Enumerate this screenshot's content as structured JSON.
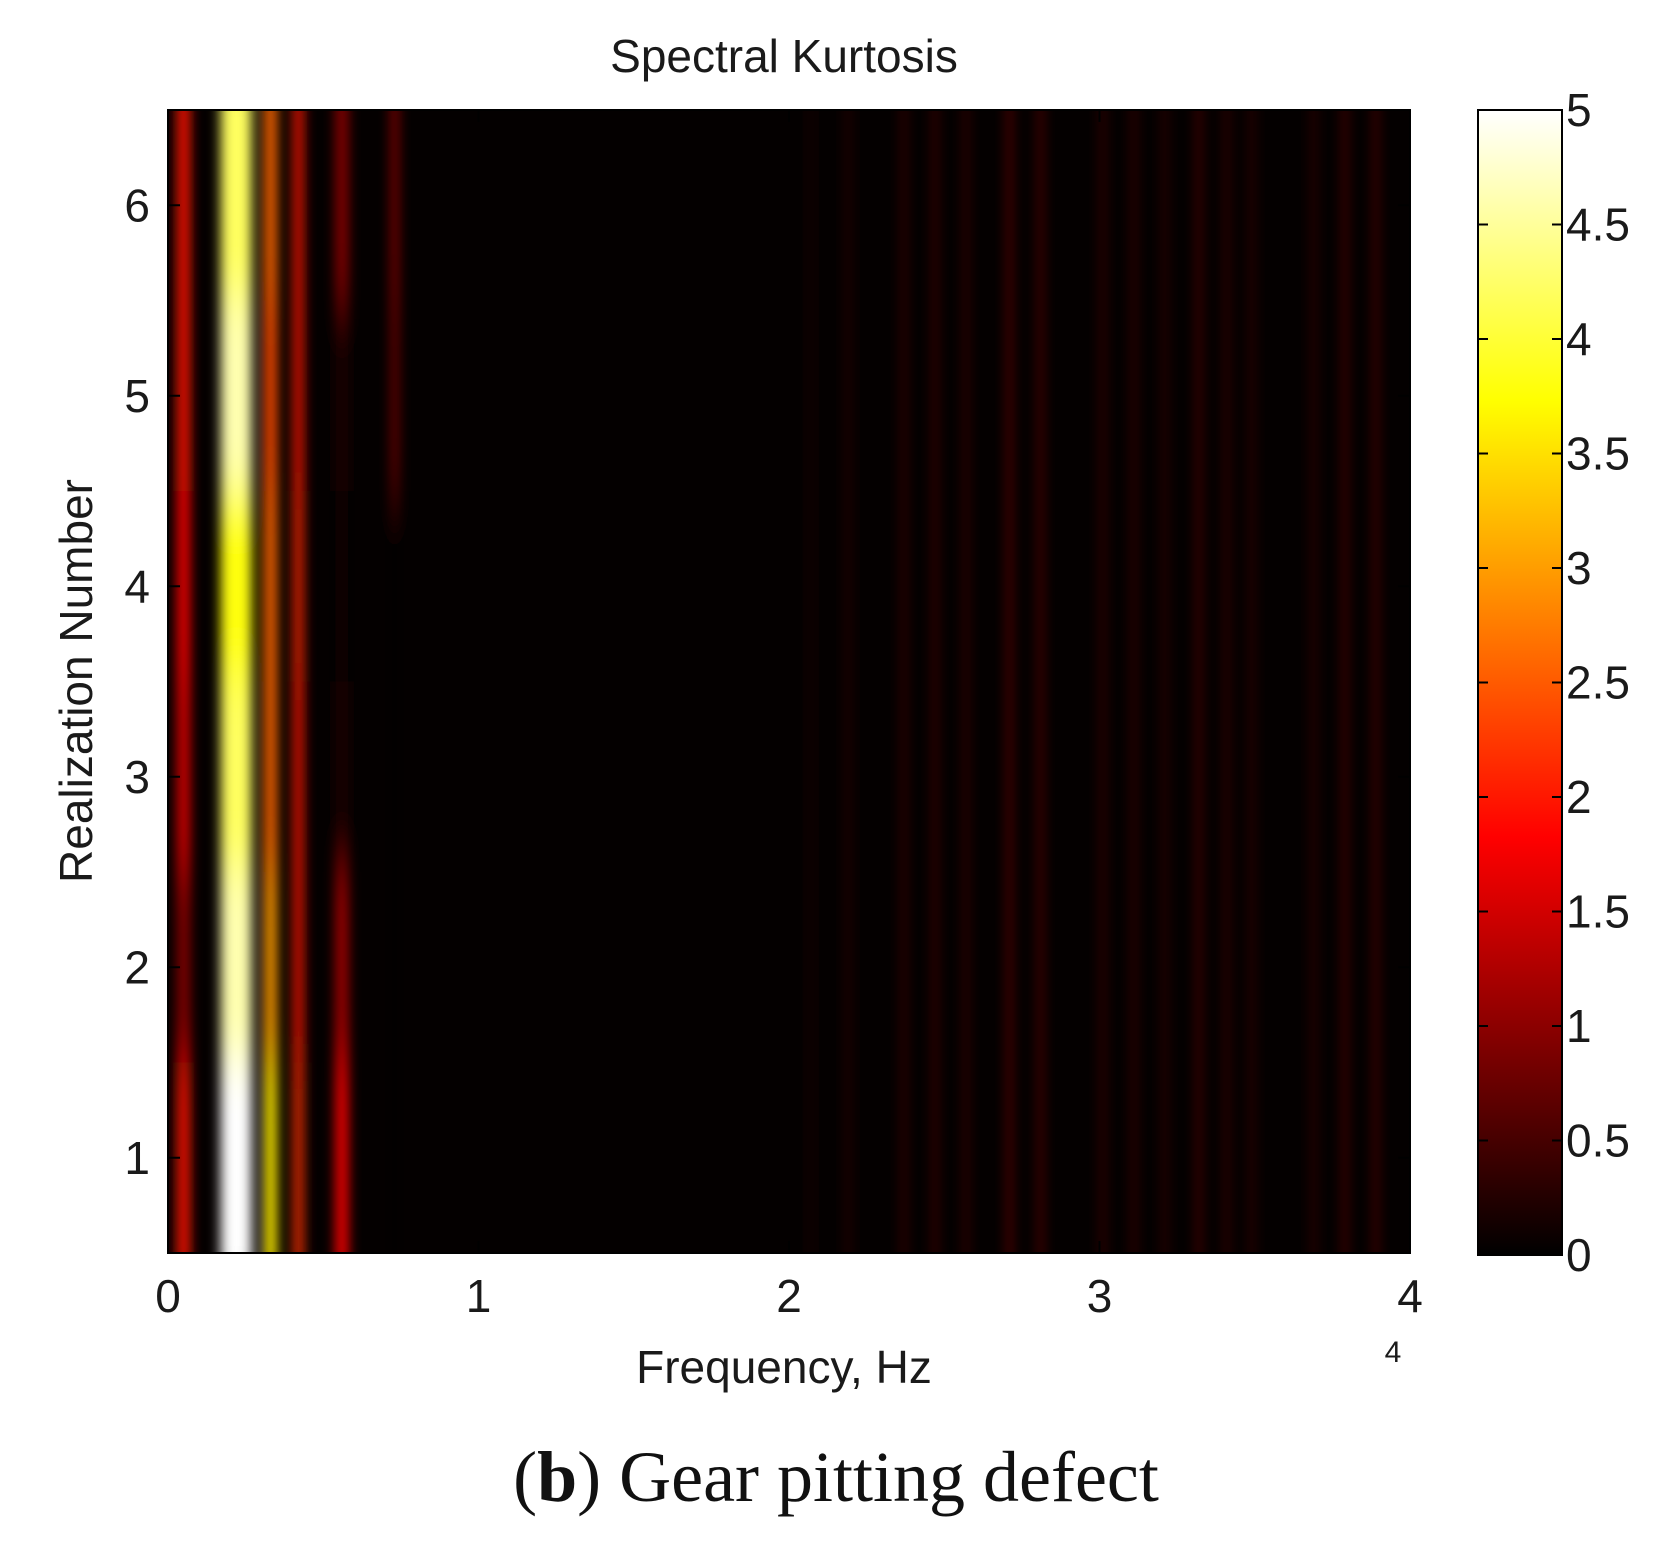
{
  "chart_data": {
    "type": "heatmap",
    "title": "Spectral Kurtosis",
    "xlabel": "Frequency, Hz",
    "ylabel": "Realization Number",
    "x_exponent_label": "4",
    "x_multiplier": 10000,
    "xlim": [
      0,
      4
    ],
    "ylim": [
      0.5,
      6.5
    ],
    "x_ticks": [
      0,
      1,
      2,
      3,
      4
    ],
    "y_ticks": [
      1,
      2,
      3,
      4,
      5,
      6
    ],
    "colormap": "hot",
    "colorbar": {
      "range": [
        0,
        5
      ],
      "ticks": [
        "0",
        "0.5",
        "1",
        "1.5",
        "2",
        "2.5",
        "3",
        "3.5",
        "4",
        "4.5",
        "5"
      ]
    },
    "stripes": [
      {
        "x": 0.05,
        "width": 0.04,
        "values": [
          2.0,
          1.0,
          1.6,
          1.8,
          2.0,
          2.0
        ]
      },
      {
        "x": 0.22,
        "width": 0.1,
        "values": [
          5.0,
          4.6,
          4.2,
          3.8,
          4.6,
          4.2
        ]
      },
      {
        "x": 0.33,
        "width": 0.04,
        "values": [
          3.6,
          3.0,
          2.6,
          2.6,
          2.4,
          2.6
        ]
      },
      {
        "x": 0.42,
        "width": 0.03,
        "values": [
          2.2,
          2.0,
          2.0,
          2.1,
          2.0,
          2.0
        ]
      },
      {
        "x": 0.56,
        "width": 0.04,
        "values": [
          1.8,
          1.2,
          0.2,
          0.1,
          0.2,
          1.0
        ]
      },
      {
        "x": 0.73,
        "width": 0.02,
        "values": [
          0.0,
          0.0,
          0.0,
          0.0,
          1.0,
          1.2
        ]
      },
      {
        "x": 2.07,
        "width": 0.01,
        "values": [
          0.3,
          0.3,
          0.3,
          0.3,
          0.3,
          0.3
        ]
      },
      {
        "x": 2.19,
        "width": 0.01,
        "values": [
          0.5,
          0.5,
          0.5,
          0.5,
          0.5,
          0.5
        ]
      },
      {
        "x": 2.37,
        "width": 0.01,
        "values": [
          0.7,
          0.7,
          0.7,
          0.7,
          0.7,
          0.7
        ]
      },
      {
        "x": 2.47,
        "width": 0.01,
        "values": [
          0.8,
          0.8,
          0.8,
          0.8,
          0.8,
          0.8
        ]
      },
      {
        "x": 2.57,
        "width": 0.01,
        "values": [
          0.7,
          0.7,
          0.7,
          0.7,
          0.7,
          0.7
        ]
      },
      {
        "x": 2.71,
        "width": 0.012,
        "values": [
          1.0,
          1.0,
          1.0,
          1.0,
          1.0,
          1.0
        ]
      },
      {
        "x": 2.81,
        "width": 0.012,
        "values": [
          0.9,
          0.9,
          0.9,
          0.9,
          0.9,
          0.9
        ]
      },
      {
        "x": 3.01,
        "width": 0.01,
        "values": [
          0.7,
          0.7,
          0.7,
          0.7,
          0.7,
          0.7
        ]
      },
      {
        "x": 3.11,
        "width": 0.01,
        "values": [
          0.7,
          0.7,
          0.7,
          0.7,
          0.7,
          0.7
        ]
      },
      {
        "x": 3.21,
        "width": 0.01,
        "values": [
          0.6,
          0.6,
          0.6,
          0.6,
          0.6,
          0.6
        ]
      },
      {
        "x": 3.32,
        "width": 0.012,
        "values": [
          0.8,
          0.8,
          0.8,
          0.8,
          0.8,
          0.8
        ]
      },
      {
        "x": 3.41,
        "width": 0.01,
        "values": [
          0.7,
          0.7,
          0.7,
          0.7,
          0.7,
          0.7
        ]
      },
      {
        "x": 3.49,
        "width": 0.01,
        "values": [
          0.6,
          0.6,
          0.6,
          0.6,
          0.6,
          0.6
        ]
      },
      {
        "x": 3.69,
        "width": 0.01,
        "values": [
          0.6,
          0.6,
          0.6,
          0.6,
          0.6,
          0.6
        ]
      },
      {
        "x": 3.79,
        "width": 0.012,
        "values": [
          0.8,
          0.8,
          0.8,
          0.8,
          0.8,
          0.8
        ]
      },
      {
        "x": 3.89,
        "width": 0.012,
        "values": [
          0.8,
          0.8,
          0.8,
          0.8,
          0.8,
          0.8
        ]
      }
    ]
  },
  "caption": {
    "label": "b",
    "text": "Gear pitting defect"
  }
}
